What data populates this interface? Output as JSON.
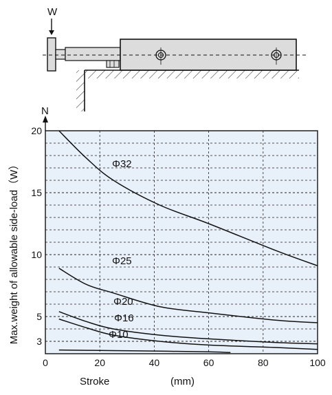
{
  "diagram": {
    "load_label": "W"
  },
  "chart_data": {
    "type": "line",
    "title": "",
    "xlabel": "Stroke",
    "xunit": "(mm)",
    "ylabel": "Max.weight of allowable side-load（W）",
    "yunit": "N",
    "xlim": [
      0,
      100
    ],
    "ylim": [
      2,
      20
    ],
    "x_ticks": [
      {
        "value": 0,
        "label": "0"
      },
      {
        "value": 20,
        "label": "20"
      },
      {
        "value": 40,
        "label": "40"
      },
      {
        "value": 60,
        "label": "60"
      },
      {
        "value": 80,
        "label": "80"
      },
      {
        "value": 100,
        "label": "100"
      }
    ],
    "y_ticks": [
      {
        "value": 3,
        "label": "3"
      },
      {
        "value": 5,
        "label": "5"
      },
      {
        "value": 10,
        "label": "10"
      },
      {
        "value": 15,
        "label": "15"
      },
      {
        "value": 20,
        "label": "20"
      }
    ],
    "grid": true,
    "legend": "none",
    "background_color": "#e8f0fa",
    "line_color": "#111111",
    "series": [
      {
        "name": "Φ32",
        "x": [
          5,
          15,
          25,
          42,
          60,
          85,
          100
        ],
        "y": [
          20,
          17.8,
          16,
          14,
          12.5,
          10.3,
          9.1
        ]
      },
      {
        "name": "Φ25",
        "x": [
          5,
          15,
          25,
          42,
          60,
          85,
          100
        ],
        "y": [
          8.9,
          7.6,
          6.9,
          5.8,
          5.3,
          4.7,
          4.5
        ]
      },
      {
        "name": "Φ20",
        "x": [
          5,
          15,
          25,
          42,
          60,
          85,
          100
        ],
        "y": [
          5.4,
          4.6,
          4.0,
          3.5,
          3.2,
          2.9,
          2.8
        ]
      },
      {
        "name": "Φ16",
        "x": [
          5,
          15,
          25,
          42,
          60,
          85,
          100
        ],
        "y": [
          4.8,
          4.1,
          3.5,
          3.0,
          2.7,
          2.5,
          2.35
        ]
      },
      {
        "name": "Φ10",
        "x": [
          5,
          25,
          45,
          60,
          68
        ],
        "y": [
          2.3,
          2.25,
          2.2,
          2.15,
          2.1
        ]
      }
    ]
  }
}
